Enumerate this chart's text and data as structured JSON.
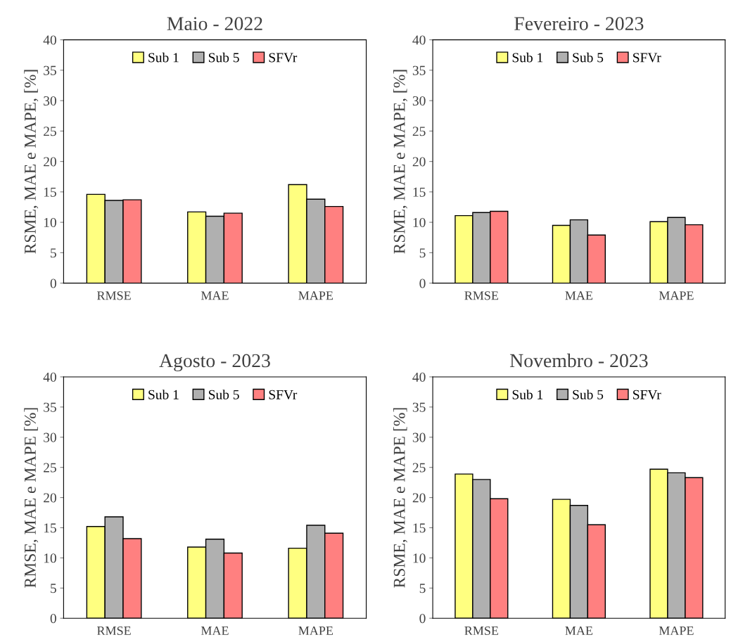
{
  "chart_data": [
    {
      "type": "bar",
      "title": "Maio - 2022",
      "ylabel": "RSME, MAE e MAPE, [%]",
      "categories": [
        "RMSE",
        "MAE",
        "MAPE"
      ],
      "ylim": [
        0,
        40
      ],
      "yticks": [
        0,
        5,
        10,
        15,
        20,
        25,
        30,
        35,
        40
      ],
      "legend": "top",
      "grid": false,
      "series": [
        {
          "name": "Sub 1",
          "color": "#ffff80",
          "values": [
            14.6,
            11.7,
            16.2
          ]
        },
        {
          "name": "Sub 5",
          "color": "#b0b0b0",
          "values": [
            13.6,
            11.0,
            13.8
          ]
        },
        {
          "name": "SFVr",
          "color": "#ff8080",
          "values": [
            13.7,
            11.5,
            12.6
          ]
        }
      ]
    },
    {
      "type": "bar",
      "title": "Fevereiro - 2023",
      "ylabel": "RSME, MAE e MAPE, [%]",
      "categories": [
        "RMSE",
        "MAE",
        "MAPE"
      ],
      "ylim": [
        0,
        40
      ],
      "yticks": [
        0,
        5,
        10,
        15,
        20,
        25,
        30,
        35,
        40
      ],
      "legend": "top",
      "grid": false,
      "series": [
        {
          "name": "Sub 1",
          "color": "#ffff80",
          "values": [
            11.1,
            9.5,
            10.1
          ]
        },
        {
          "name": "Sub 5",
          "color": "#b0b0b0",
          "values": [
            11.6,
            10.4,
            10.8
          ]
        },
        {
          "name": "SFVr",
          "color": "#ff8080",
          "values": [
            11.8,
            7.9,
            9.6
          ]
        }
      ]
    },
    {
      "type": "bar",
      "title": "Agosto - 2023",
      "ylabel": "RMSE, MAE e MAPE [%]",
      "categories": [
        "RMSE",
        "MAE",
        "MAPE"
      ],
      "ylim": [
        0,
        40
      ],
      "yticks": [
        0,
        5,
        10,
        15,
        20,
        25,
        30,
        35,
        40
      ],
      "legend": "top",
      "grid": false,
      "series": [
        {
          "name": "Sub 1",
          "color": "#ffff80",
          "values": [
            15.2,
            11.8,
            11.6
          ]
        },
        {
          "name": "Sub 5",
          "color": "#b0b0b0",
          "values": [
            16.8,
            13.1,
            15.4
          ]
        },
        {
          "name": "SFVr",
          "color": "#ff8080",
          "values": [
            13.2,
            10.8,
            14.1
          ]
        }
      ]
    },
    {
      "type": "bar",
      "title": "Novembro - 2023",
      "ylabel": "RSME, MAE e MAPE [%]",
      "categories": [
        "RMSE",
        "MAE",
        "MAPE"
      ],
      "ylim": [
        0,
        40
      ],
      "yticks": [
        0,
        5,
        10,
        15,
        20,
        25,
        30,
        35,
        40
      ],
      "legend": "top",
      "grid": false,
      "series": [
        {
          "name": "Sub 1",
          "color": "#ffff80",
          "values": [
            23.9,
            19.7,
            24.7
          ]
        },
        {
          "name": "Sub 5",
          "color": "#b0b0b0",
          "values": [
            23.0,
            18.7,
            24.1
          ]
        },
        {
          "name": "SFVr",
          "color": "#ff8080",
          "values": [
            19.8,
            15.5,
            23.3
          ]
        }
      ]
    }
  ]
}
